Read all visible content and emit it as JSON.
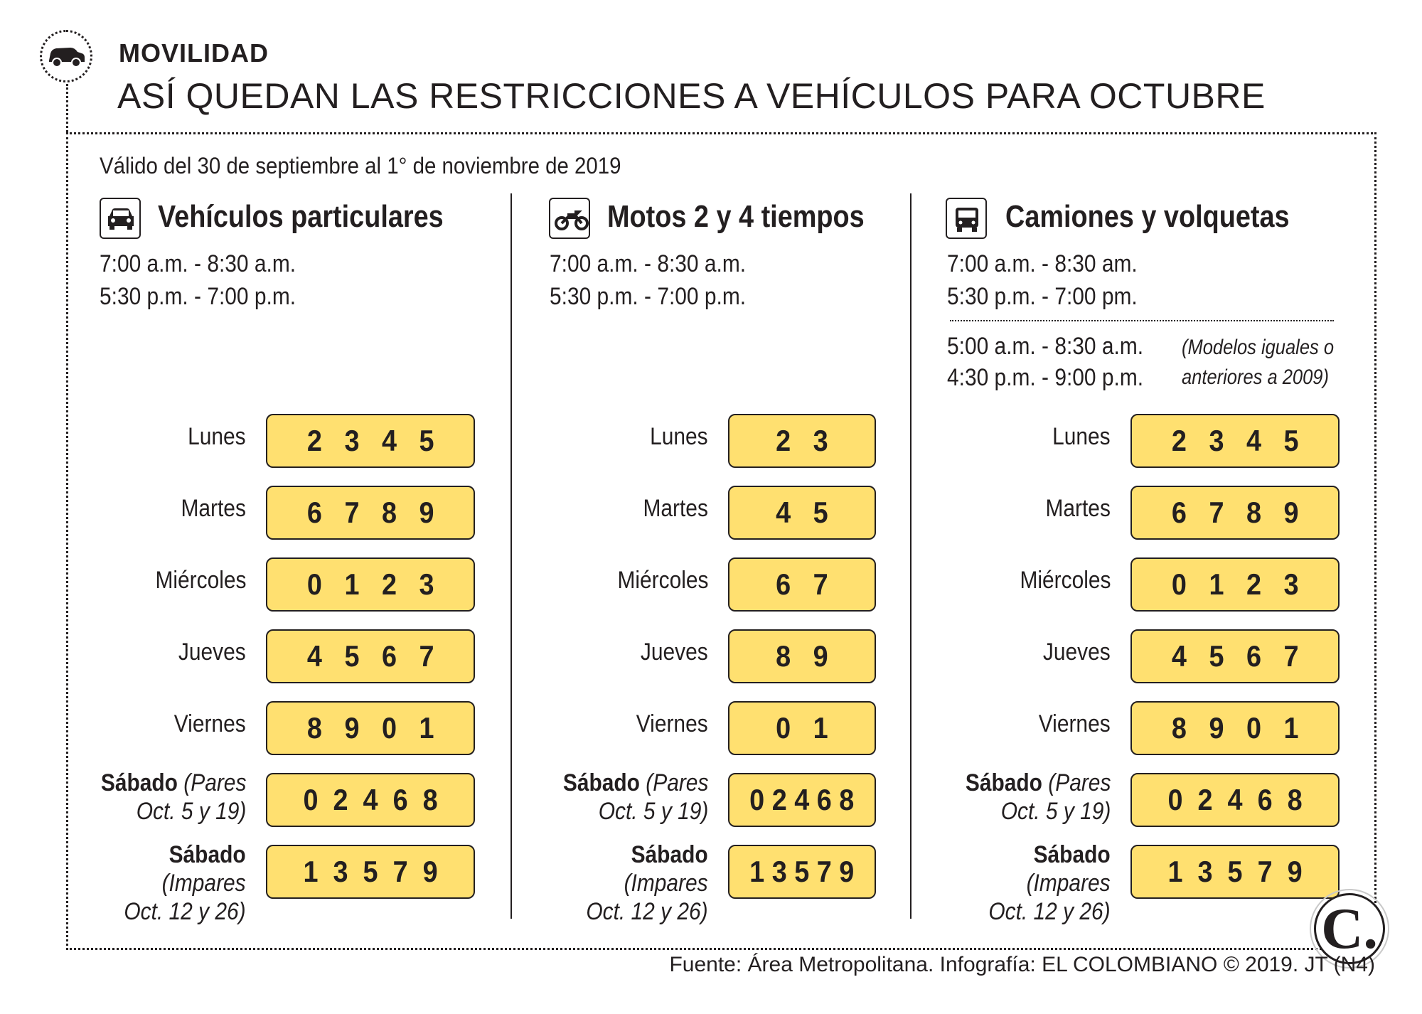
{
  "header": {
    "section_label": "MOVILIDAD",
    "headline": "ASÍ QUEDAN LAS RESTRICCIONES A VEHÍCULOS PARA OCTUBRE",
    "icon": "car-icon"
  },
  "validity": "Válido del 30 de septiembre al 1° de noviembre de 2019",
  "columns": [
    {
      "title": "Vehículos particulares",
      "icon": "car-icon",
      "times": [
        "7:00 a.m. - 8:30 a.m.",
        "5:30 p.m. - 7:00 p.m."
      ],
      "rows": [
        {
          "day": "Lunes",
          "digits": "2   3   4   5"
        },
        {
          "day": "Martes",
          "digits": "6   7   8   9"
        },
        {
          "day": "Miércoles",
          "digits": "0   1   2   3"
        },
        {
          "day": "Jueves",
          "digits": "4   5   6   7"
        },
        {
          "day": "Viernes",
          "digits": "8   9   0   1"
        },
        {
          "day": "Sábado",
          "detail1": "(Pares",
          "detail2": "Oct. 5 y 19)",
          "digits": "0  2  4  6  8"
        },
        {
          "day": "Sábado",
          "detail1": "(Impares",
          "detail2": "Oct. 12 y 26)",
          "digits": "1  3  5  7  9"
        }
      ]
    },
    {
      "title": "Motos 2 y 4 tiempos",
      "icon": "motorcycle-icon",
      "times": [
        "7:00 a.m. - 8:30 a.m.",
        "5:30 p.m. - 7:00 p.m."
      ],
      "rows": [
        {
          "day": "Lunes",
          "digits": "2   3"
        },
        {
          "day": "Martes",
          "digits": "4   5"
        },
        {
          "day": "Miércoles",
          "digits": "6   7"
        },
        {
          "day": "Jueves",
          "digits": "8   9"
        },
        {
          "day": "Viernes",
          "digits": "0   1"
        },
        {
          "day": "Sábado",
          "detail1": "(Pares",
          "detail2": "Oct. 5 y 19)",
          "digits": "0 2 4 6 8"
        },
        {
          "day": "Sábado",
          "detail1": "(Impares",
          "detail2": "Oct. 12 y 26)",
          "digits": "1 3 5 7 9"
        }
      ]
    },
    {
      "title": "Camiones y volquetas",
      "icon": "truck-icon",
      "times": [
        "7:00 a.m. - 8:30 am.",
        "5:30 p.m. - 7:00 pm."
      ],
      "extra_times": [
        "5:00 a.m. - 8:30 a.m.",
        "4:30 p.m. - 9:00 p.m."
      ],
      "extra_note": [
        "(Modelos iguales o",
        "anteriores a 2009)"
      ],
      "rows": [
        {
          "day": "Lunes",
          "digits": "2   3   4   5"
        },
        {
          "day": "Martes",
          "digits": "6   7   8   9"
        },
        {
          "day": "Miércoles",
          "digits": "0   1   2   3"
        },
        {
          "day": "Jueves",
          "digits": "4   5   6   7"
        },
        {
          "day": "Viernes",
          "digits": "8   9   0   1"
        },
        {
          "day": "Sábado",
          "detail1": "(Pares",
          "detail2": "Oct. 5 y 19)",
          "digits": "0  2  4  6  8"
        },
        {
          "day": "Sábado",
          "detail1": "(Impares",
          "detail2": "Oct. 12 y 26)",
          "digits": "1  3  5  7  9"
        }
      ]
    }
  ],
  "footer": "Fuente: Área Metropolitana. Infografía: EL COLOMBIANO © 2019. JT (N4)",
  "logo": {
    "letter": "C.",
    "icon": "el-colombiano-logo-icon"
  },
  "colors": {
    "plate_fill": "#ffe070",
    "ink": "#231f20"
  }
}
